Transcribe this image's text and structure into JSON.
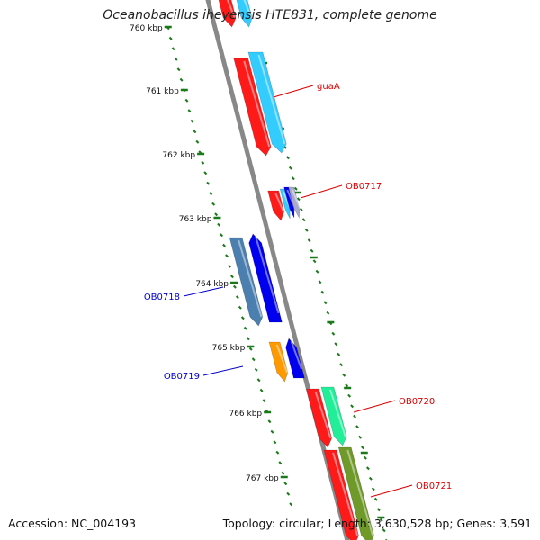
{
  "title": "Oceanobacillus iheyensis HTE831, complete genome",
  "accession": "Accession: NC_004193",
  "topology": "Topology: circular; Length: 3,630,528 bp; Genes: 3,591",
  "kbp_labels": [
    "760 kbp",
    "761 kbp",
    "762 kbp",
    "763 kbp",
    "764 kbp",
    "765 kbp",
    "766 kbp",
    "767 kbp"
  ],
  "gene_labels": [
    {
      "text": "guaA",
      "color": "#dd0000"
    },
    {
      "text": "OB0717",
      "color": "#dd0000"
    },
    {
      "text": "OB0718",
      "color": "#0000cc"
    },
    {
      "text": "OB0719",
      "color": "#0000cc"
    },
    {
      "text": "OB0720",
      "color": "#dd0000"
    },
    {
      "text": "OB0721",
      "color": "#dd0000"
    }
  ],
  "colors": {
    "tick": "#1a7a1a",
    "backbone": "#888888",
    "red": "#ff1a1a",
    "light_blue": "#33ccff",
    "steel_blue": "#4a7fb0",
    "blue": "#0000ee",
    "orange": "#ff9900",
    "spring_green": "#22ee99",
    "olive": "#6f9a2a"
  }
}
